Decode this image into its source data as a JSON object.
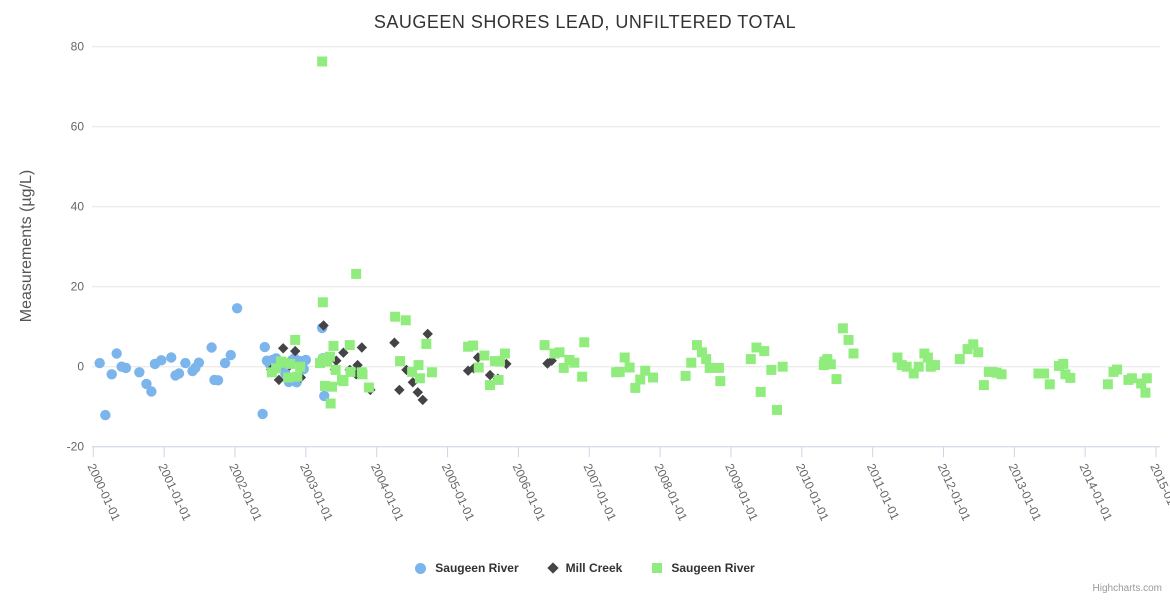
{
  "title": "SAUGEEN SHORES LEAD, UNFILTERED TOTAL",
  "credits": "Highcharts.com",
  "colors": {
    "series_blue": "#7cb5ec",
    "series_dark": "#434348",
    "series_green": "#90ed7d",
    "grid_line": "#e6e6e6",
    "axis_line": "#ccd6eb",
    "tick_label": "#666666",
    "title_text": "#333333"
  },
  "y_axis": {
    "title": "Measurements (µg/L)",
    "ticks": [
      -20,
      0,
      20,
      40,
      60,
      80
    ],
    "tick_labels": [
      "-20",
      "0",
      "20",
      "40",
      "60",
      "80"
    ]
  },
  "x_axis": {
    "tick_labels": [
      "2000-01-01",
      "2001-01-01",
      "2002-01-01",
      "2003-01-01",
      "2004-01-01",
      "2005-01-01",
      "2006-01-01",
      "2007-01-01",
      "2008-01-01",
      "2009-01-01",
      "2010-01-01",
      "2011-01-01",
      "2012-01-01",
      "2013-01-01",
      "2014-01-01",
      "2015-01-01"
    ]
  },
  "chart_data": {
    "type": "scatter",
    "title": "SAUGEEN SHORES LEAD, UNFILTERED TOTAL",
    "xlabel": "",
    "ylabel": "Measurements (µg/L)",
    "ylim": [
      -20,
      80
    ],
    "x_range_years": [
      2000,
      2015.3
    ],
    "grid": "horizontal-only",
    "legend_position": "bottom-center",
    "series": [
      {
        "name": "Saugeen River",
        "marker": "circle",
        "color": "#7cb5ec",
        "points": [
          [
            2000.09,
            0.9
          ],
          [
            2000.17,
            -12.1
          ],
          [
            2000.26,
            -1.9
          ],
          [
            2000.33,
            3.3
          ],
          [
            2000.4,
            0.0
          ],
          [
            2000.46,
            -0.3
          ],
          [
            2000.65,
            -1.4
          ],
          [
            2000.75,
            -4.3
          ],
          [
            2000.82,
            -6.2
          ],
          [
            2000.87,
            0.7
          ],
          [
            2000.96,
            1.6
          ],
          [
            2001.1,
            2.3
          ],
          [
            2001.16,
            -2.2
          ],
          [
            2001.21,
            -1.7
          ],
          [
            2001.3,
            0.9
          ],
          [
            2001.4,
            -1.1
          ],
          [
            2001.44,
            -0.3
          ],
          [
            2001.49,
            1.0
          ],
          [
            2001.67,
            4.8
          ],
          [
            2001.71,
            -3.3
          ],
          [
            2001.76,
            -3.4
          ],
          [
            2001.86,
            0.9
          ],
          [
            2001.94,
            2.9
          ],
          [
            2002.03,
            14.6
          ],
          [
            2002.39,
            -11.8
          ],
          [
            2002.42,
            4.9
          ],
          [
            2002.45,
            1.5
          ],
          [
            2002.49,
            0.7
          ],
          [
            2002.53,
            1.7
          ],
          [
            2002.58,
            2.1
          ],
          [
            2002.64,
            0.2
          ],
          [
            2002.71,
            -1.7
          ],
          [
            2002.76,
            -3.8
          ],
          [
            2002.81,
            1.7
          ],
          [
            2002.84,
            2.1
          ],
          [
            2002.87,
            -3.9
          ],
          [
            2002.92,
            1.4
          ],
          [
            2002.97,
            -0.6
          ],
          [
            2003.0,
            1.7
          ],
          [
            2003.23,
            9.7
          ],
          [
            2003.24,
            2.1
          ],
          [
            2003.26,
            -7.3
          ]
        ]
      },
      {
        "name": "Mill Creek",
        "marker": "diamond",
        "color": "#434348",
        "points": [
          [
            2002.51,
            -0.7
          ],
          [
            2002.62,
            -3.3
          ],
          [
            2002.68,
            4.6
          ],
          [
            2002.77,
            0.3
          ],
          [
            2002.85,
            3.9
          ],
          [
            2002.93,
            -2.7
          ],
          [
            2003.25,
            10.3
          ],
          [
            2003.41,
            -0.7
          ],
          [
            2003.43,
            1.5
          ],
          [
            2003.53,
            3.5
          ],
          [
            2003.62,
            -0.8
          ],
          [
            2003.71,
            -1.9
          ],
          [
            2003.73,
            0.4
          ],
          [
            2003.79,
            4.8
          ],
          [
            2003.91,
            -5.8
          ],
          [
            2004.25,
            6.0
          ],
          [
            2004.32,
            -5.8
          ],
          [
            2004.42,
            -0.8
          ],
          [
            2004.51,
            -3.9
          ],
          [
            2004.58,
            -6.4
          ],
          [
            2004.65,
            -8.3
          ],
          [
            2004.72,
            8.2
          ],
          [
            2005.29,
            -1.0
          ],
          [
            2005.37,
            -0.4
          ],
          [
            2005.43,
            2.3
          ],
          [
            2005.6,
            -2.1
          ],
          [
            2005.71,
            -3.0
          ],
          [
            2005.83,
            0.7
          ],
          [
            2006.41,
            0.8
          ],
          [
            2006.47,
            1.5
          ]
        ]
      },
      {
        "name": "Saugeen River",
        "marker": "square",
        "color": "#90ed7d",
        "points": [
          [
            2002.52,
            -1.4
          ],
          [
            2002.58,
            -0.4
          ],
          [
            2002.65,
            1.3
          ],
          [
            2002.68,
            1.0
          ],
          [
            2002.75,
            -2.7
          ],
          [
            2002.78,
            0.7
          ],
          [
            2002.85,
            6.7
          ],
          [
            2002.88,
            -2.5
          ],
          [
            2002.92,
            0.0
          ],
          [
            2003.2,
            0.9
          ],
          [
            2003.23,
            76.3
          ],
          [
            2003.24,
            16.1
          ],
          [
            2003.25,
            1.9
          ],
          [
            2003.27,
            -4.8
          ],
          [
            2003.3,
            1.3
          ],
          [
            2003.34,
            2.5
          ],
          [
            2003.35,
            -9.2
          ],
          [
            2003.37,
            -5.0
          ],
          [
            2003.39,
            5.2
          ],
          [
            2003.42,
            -0.8
          ],
          [
            2003.51,
            -3.3
          ],
          [
            2003.53,
            -3.6
          ],
          [
            2003.62,
            5.4
          ],
          [
            2003.63,
            -1.3
          ],
          [
            2003.71,
            23.2
          ],
          [
            2003.79,
            -1.4
          ],
          [
            2003.8,
            -1.9
          ],
          [
            2003.89,
            -5.2
          ],
          [
            2004.26,
            12.5
          ],
          [
            2004.33,
            1.4
          ],
          [
            2004.41,
            11.6
          ],
          [
            2004.5,
            -1.3
          ],
          [
            2004.59,
            0.4
          ],
          [
            2004.61,
            -2.9
          ],
          [
            2004.7,
            5.7
          ],
          [
            2004.78,
            -1.4
          ],
          [
            2005.29,
            5.0
          ],
          [
            2005.36,
            5.3
          ],
          [
            2005.44,
            -0.2
          ],
          [
            2005.52,
            2.8
          ],
          [
            2005.6,
            -4.6
          ],
          [
            2005.67,
            1.4
          ],
          [
            2005.72,
            -3.3
          ],
          [
            2005.74,
            1.3
          ],
          [
            2005.81,
            3.3
          ],
          [
            2006.37,
            5.4
          ],
          [
            2006.51,
            3.3
          ],
          [
            2006.58,
            3.6
          ],
          [
            2006.64,
            -0.3
          ],
          [
            2006.72,
            1.7
          ],
          [
            2006.79,
            1.0
          ],
          [
            2006.9,
            -2.5
          ],
          [
            2006.93,
            6.1
          ],
          [
            2007.38,
            -1.4
          ],
          [
            2007.43,
            -1.3
          ],
          [
            2007.5,
            2.3
          ],
          [
            2007.57,
            -0.2
          ],
          [
            2007.65,
            -5.3
          ],
          [
            2007.72,
            -3.2
          ],
          [
            2007.79,
            -1.0
          ],
          [
            2007.9,
            -2.7
          ],
          [
            2008.36,
            -2.3
          ],
          [
            2008.44,
            1.0
          ],
          [
            2008.52,
            5.4
          ],
          [
            2008.59,
            3.6
          ],
          [
            2008.65,
            1.9
          ],
          [
            2008.7,
            -0.3
          ],
          [
            2008.83,
            -0.3
          ],
          [
            2008.85,
            -3.6
          ],
          [
            2009.28,
            1.9
          ],
          [
            2009.36,
            4.8
          ],
          [
            2009.42,
            -6.3
          ],
          [
            2009.47,
            3.9
          ],
          [
            2009.57,
            -0.8
          ],
          [
            2009.65,
            -10.8
          ],
          [
            2009.73,
            0.0
          ],
          [
            2010.31,
            0.4
          ],
          [
            2010.32,
            1.3
          ],
          [
            2010.36,
            1.9
          ],
          [
            2010.41,
            0.6
          ],
          [
            2010.49,
            -3.1
          ],
          [
            2010.58,
            9.6
          ],
          [
            2010.66,
            6.7
          ],
          [
            2010.73,
            3.3
          ],
          [
            2011.35,
            2.3
          ],
          [
            2011.41,
            0.4
          ],
          [
            2011.48,
            0.0
          ],
          [
            2011.58,
            -1.7
          ],
          [
            2011.65,
            0.0
          ],
          [
            2011.73,
            3.3
          ],
          [
            2011.78,
            2.3
          ],
          [
            2011.82,
            0.0
          ],
          [
            2011.88,
            0.4
          ],
          [
            2012.23,
            1.9
          ],
          [
            2012.34,
            4.4
          ],
          [
            2012.42,
            5.6
          ],
          [
            2012.49,
            3.6
          ],
          [
            2012.57,
            -4.6
          ],
          [
            2012.64,
            -1.3
          ],
          [
            2012.69,
            -1.3
          ],
          [
            2012.75,
            -1.5
          ],
          [
            2012.82,
            -1.9
          ],
          [
            2013.34,
            -1.7
          ],
          [
            2013.42,
            -1.7
          ],
          [
            2013.5,
            -4.4
          ],
          [
            2013.63,
            0.2
          ],
          [
            2013.69,
            0.7
          ],
          [
            2013.72,
            -1.9
          ],
          [
            2013.79,
            -2.8
          ],
          [
            2014.32,
            -4.4
          ],
          [
            2014.4,
            -1.3
          ],
          [
            2014.45,
            -0.7
          ],
          [
            2014.61,
            -3.3
          ],
          [
            2014.66,
            -2.9
          ],
          [
            2014.79,
            -4.2
          ],
          [
            2014.85,
            -6.5
          ],
          [
            2014.87,
            -2.9
          ]
        ]
      }
    ]
  }
}
